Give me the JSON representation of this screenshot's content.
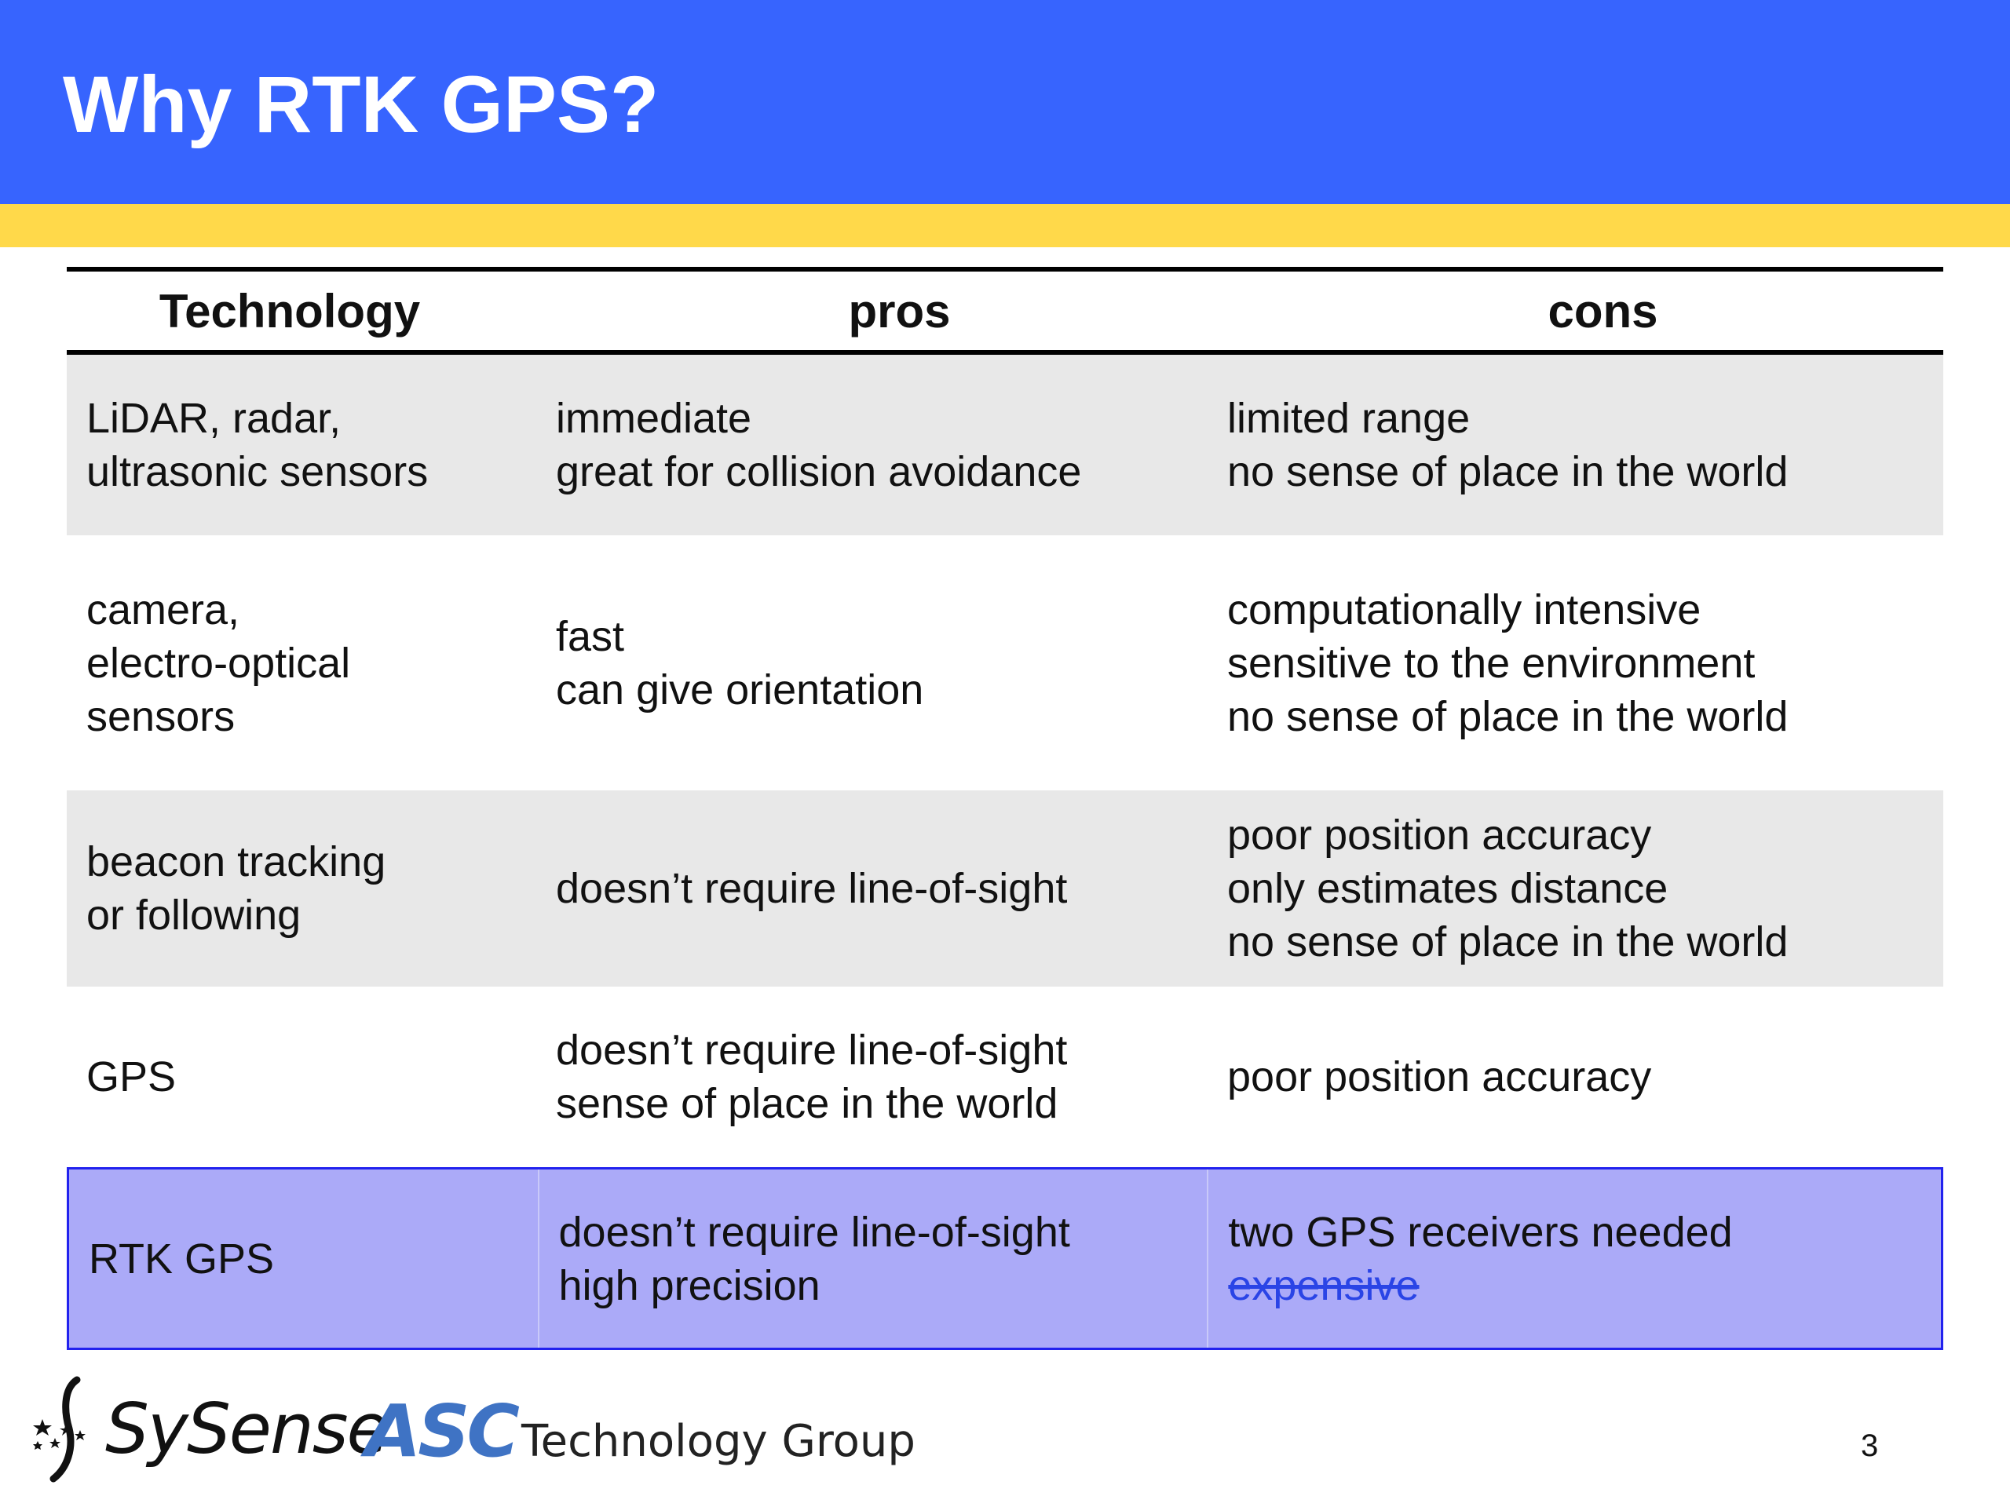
{
  "slide": {
    "title": "Why RTK GPS?",
    "page_number": "3",
    "colors": {
      "header": "#3764fe",
      "stripe": "#ffd94a",
      "row_shade": "#e8e8e8",
      "highlight_row": "#abaaf8",
      "highlight_border": "#2222ee"
    }
  },
  "table": {
    "headers": [
      "Technology",
      "pros",
      "cons"
    ],
    "rows": [
      {
        "shaded": true,
        "technology": [
          "LiDAR, radar,",
          "ultrasonic sensors"
        ],
        "pros": [
          "immediate",
          "great for collision avoidance"
        ],
        "cons": [
          "limited range",
          "no sense of place in the world"
        ]
      },
      {
        "shaded": false,
        "technology": [
          "camera,",
          "electro-optical",
          "sensors"
        ],
        "pros": [
          "fast",
          "can give orientation"
        ],
        "cons": [
          "computationally intensive",
          "sensitive to the environment",
          "no sense of place in the world"
        ]
      },
      {
        "shaded": true,
        "technology": [
          "beacon tracking",
          "or following"
        ],
        "pros": [
          "doesn’t require line-of-sight"
        ],
        "cons": [
          "poor position accuracy",
          "only estimates distance",
          "no sense of place in the world"
        ]
      },
      {
        "shaded": false,
        "technology": [
          "GPS"
        ],
        "pros": [
          "doesn’t require line-of-sight",
          "sense of place in the world"
        ],
        "cons": [
          "poor position accuracy"
        ]
      },
      {
        "highlight": true,
        "technology": [
          "RTK GPS"
        ],
        "pros": [
          "doesn’t require line-of-sight",
          "high precision"
        ],
        "cons": [
          "two GPS receivers needed",
          "expensive"
        ],
        "struck_cons_index": 1
      }
    ]
  },
  "footer": {
    "logo_sysense": "SySense",
    "logo_asc_mark": "ASC",
    "logo_asc_text": "Technology Group",
    "icon": "star-cluster-icon"
  }
}
